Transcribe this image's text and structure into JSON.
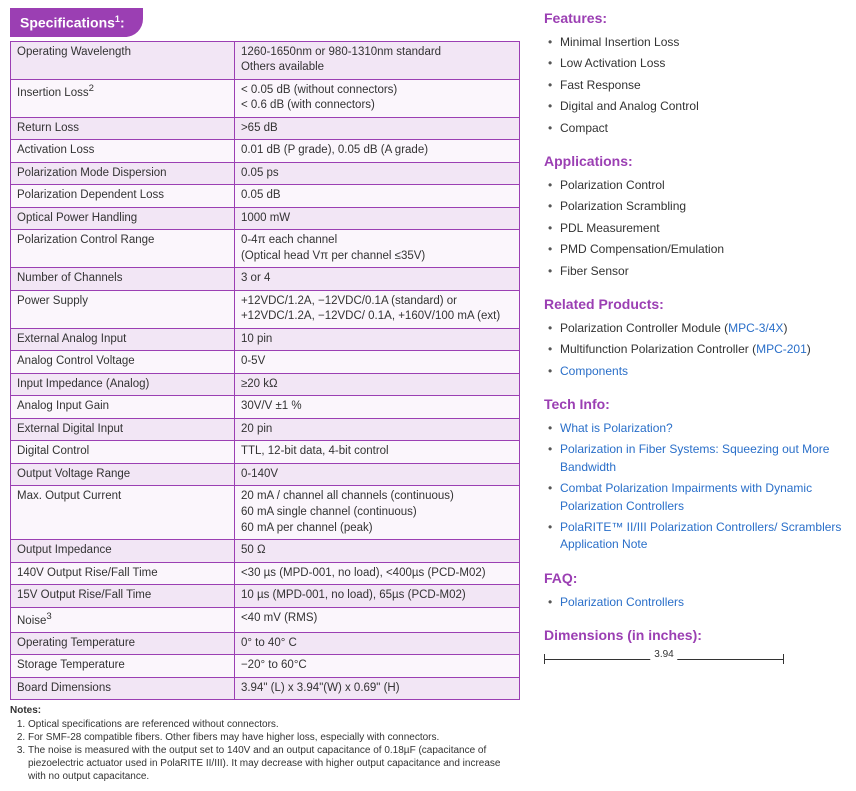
{
  "specs": {
    "title": "Specifications",
    "title_sup": "1",
    "rows": [
      {
        "label": "Operating Wavelength",
        "value": "1260-1650nm or 980-1310nm standard<br>Others available"
      },
      {
        "label": "Insertion Loss<sup>2</sup>",
        "value": "< 0.05 dB (without connectors)<br>< 0.6 dB (with connectors)"
      },
      {
        "label": "Return Loss",
        "value": ">65 dB"
      },
      {
        "label": "Activation Loss",
        "value": "0.01 dB (P grade), 0.05 dB (A grade)"
      },
      {
        "label": "Polarization Mode Dispersion",
        "value": "0.05 ps"
      },
      {
        "label": "Polarization Dependent Loss",
        "value": "0.05 dB"
      },
      {
        "label": "Optical Power Handling",
        "value": "1000 mW"
      },
      {
        "label": "Polarization Control Range",
        "value": "0-4π each channel<br>(Optical head Vπ per channel ≤35V)"
      },
      {
        "label": "Number of Channels",
        "value": "3 or 4"
      },
      {
        "label": "Power Supply",
        "value": "+12VDC/1.2A, −12VDC/0.1A (standard) or<br>+12VDC/1.2A, −12VDC/ 0.1A, +160V/100 mA (ext)"
      },
      {
        "label": "External Analog Input",
        "value": "10 pin"
      },
      {
        "label": "Analog Control Voltage",
        "value": "0-5V"
      },
      {
        "label": "Input Impedance (Analog)",
        "value": "≥20 kΩ"
      },
      {
        "label": "Analog Input Gain",
        "value": "30V/V ±1 %"
      },
      {
        "label": "External Digital Input",
        "value": "20 pin"
      },
      {
        "label": "Digital Control",
        "value": "TTL, 12-bit data, 4-bit control"
      },
      {
        "label": "Output Voltage Range",
        "value": "0-140V"
      },
      {
        "label": "Max. Output Current",
        "value": "20 mA / channel all channels (continuous)<br>60 mA single channel (continuous)<br>60 mA per channel (peak)"
      },
      {
        "label": "Output Impedance",
        "value": "50 Ω"
      },
      {
        "label": "140V Output Rise/Fall Time",
        "value": "<30 µs (MPD-001, no load), <400µs (PCD-M02)"
      },
      {
        "label": "15V Output Rise/Fall Time",
        "value": "10 µs (MPD-001, no load), 65µs (PCD-M02)"
      },
      {
        "label": "Noise<sup>3</sup>",
        "value": "<40 mV (RMS)"
      },
      {
        "label": "Operating Temperature",
        "value": "0° to 40° C"
      },
      {
        "label": "Storage Temperature",
        "value": "−20° to 60°C"
      },
      {
        "label": "Board Dimensions",
        "value": "3.94\" (L) x 3.94\"(W) x 0.69\" (H)"
      }
    ],
    "notes_title": "Notes:",
    "notes": [
      "Optical specifications are referenced without connectors.",
      "For SMF-28 compatible fibers. Other fibers may have higher loss, especially with connectors.",
      "The noise is measured with the output set to 140V and an output capacitance of 0.18µF (capacitance of piezoelectric actuator used in PolaRITE II/III). It may decrease with higher output capacitance and increase with no output capacitance."
    ]
  },
  "features": {
    "title": "Features:",
    "items": [
      "Minimal Insertion Loss",
      "Low Activation Loss",
      "Fast Response",
      "Digital and Analog Control",
      "Compact"
    ]
  },
  "applications": {
    "title": "Applications:",
    "items": [
      "Polarization Control",
      "Polarization Scrambling",
      "PDL Measurement",
      "PMD Compensation/Emulation",
      "Fiber Sensor"
    ]
  },
  "related": {
    "title": "Related Products:",
    "items": [
      {
        "prefix": "Polarization Controller Module (",
        "link": "MPC-3/4X",
        "suffix": ")"
      },
      {
        "prefix": "Multifunction Polarization Controller (",
        "link": "MPC-201",
        "suffix": ")"
      },
      {
        "prefix": "",
        "link": "Components",
        "suffix": ""
      }
    ]
  },
  "tech": {
    "title": "Tech Info:",
    "items": [
      "What is Polarization?",
      "Polarization in Fiber Systems: Squeezing out More Bandwidth",
      "Combat Polarization Impairments with Dynamic Polarization Controllers",
      "PolaRITE™ II/III Polarization Controllers/ Scramblers Application Note"
    ]
  },
  "faq": {
    "title": "FAQ:",
    "items": [
      "Polarization Controllers"
    ]
  },
  "dimensions": {
    "title": "Dimensions (in inches):",
    "width_label": "3.94"
  },
  "colors": {
    "brand": "#9b3fb3",
    "row_odd": "#f2e6f5",
    "row_even": "#fbf6fc",
    "link": "#2a6fc9",
    "text": "#333333"
  }
}
